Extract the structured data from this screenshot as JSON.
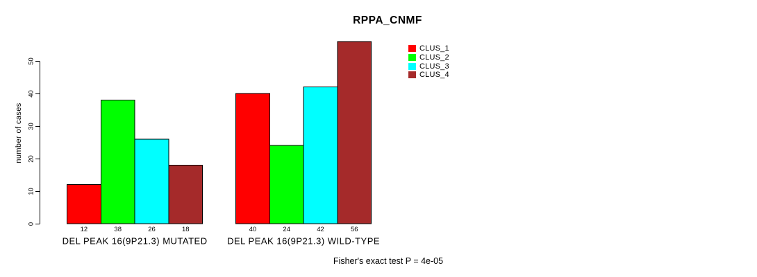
{
  "chart_data": {
    "type": "bar",
    "title": "RPPA_CNMF",
    "ylabel": "number of cases",
    "xlabel": "",
    "ylim": [
      0,
      56
    ],
    "yticks": [
      0,
      10,
      20,
      30,
      40,
      50
    ],
    "grid": false,
    "legend_position": "top-right",
    "bar_value_labels_shown": true,
    "categories": [
      "DEL PEAK 16(9P21.3) MUTATED",
      "DEL PEAK 16(9P21.3) WILD-TYPE"
    ],
    "series": [
      {
        "name": "CLUS_1",
        "color": "#ff0000",
        "values": [
          12,
          40
        ]
      },
      {
        "name": "CLUS_2",
        "color": "#00ff00",
        "values": [
          38,
          24
        ]
      },
      {
        "name": "CLUS_3",
        "color": "#00ffff",
        "values": [
          26,
          42
        ]
      },
      {
        "name": "CLUS_4",
        "color": "#a52a2a",
        "values": [
          18,
          56
        ]
      }
    ],
    "annotation": "Fisher's exact test P = 4e-05"
  }
}
